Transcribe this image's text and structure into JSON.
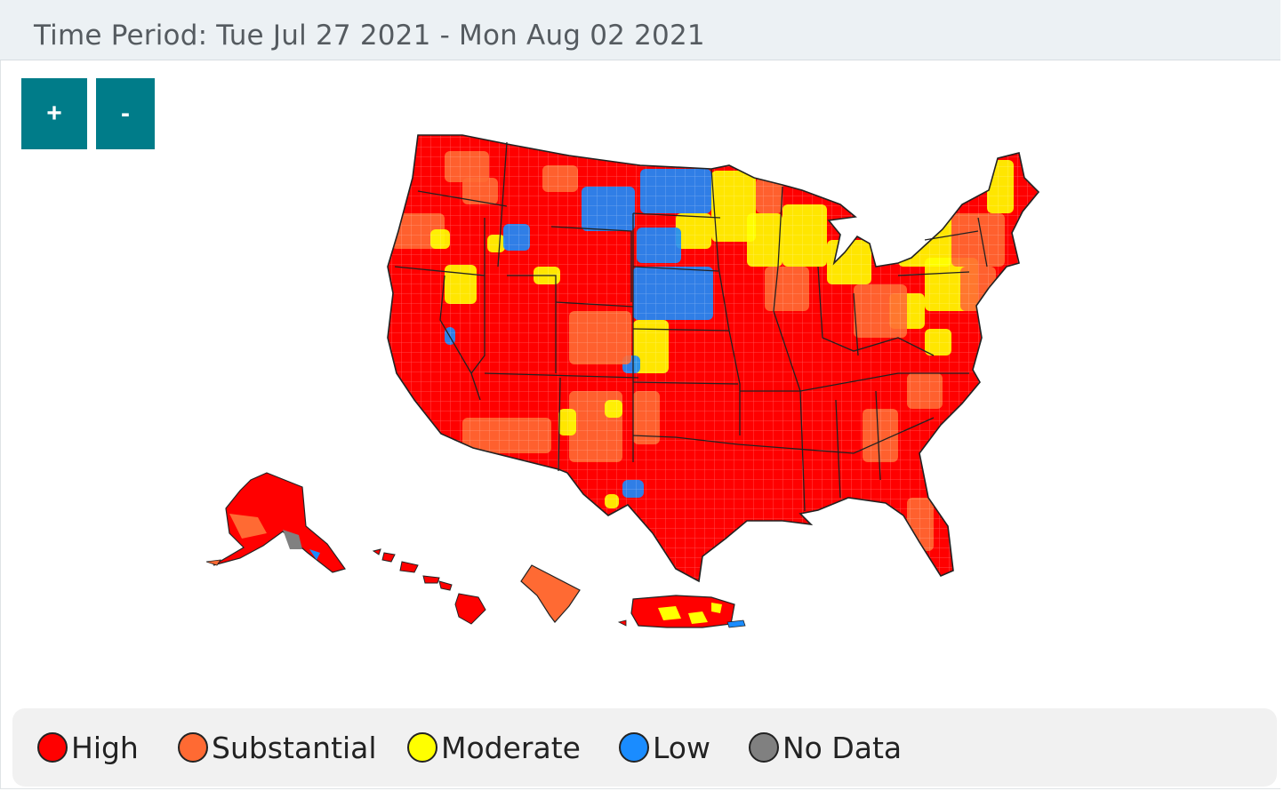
{
  "header": {
    "time_period": "Time Period: Tue Jul 27 2021 - Mon Aug 02 2021"
  },
  "zoom": {
    "in_label": "+",
    "out_label": "-"
  },
  "colors": {
    "high": "#ff0000",
    "substantial": "#ff6a33",
    "moderate": "#ffff00",
    "low": "#1a8cff",
    "no_data": "#808080",
    "border": "#222222",
    "accent": "#007c89"
  },
  "legend": {
    "items": [
      {
        "key": "high",
        "label": "High",
        "color": "#ff0000"
      },
      {
        "key": "substantial",
        "label": "Substantial",
        "color": "#ff6a33"
      },
      {
        "key": "moderate",
        "label": "Moderate",
        "color": "#ffff00"
      },
      {
        "key": "low",
        "label": "Low",
        "color": "#1a8cff"
      },
      {
        "key": "no_data",
        "label": "No Data",
        "color": "#808080"
      }
    ]
  }
}
